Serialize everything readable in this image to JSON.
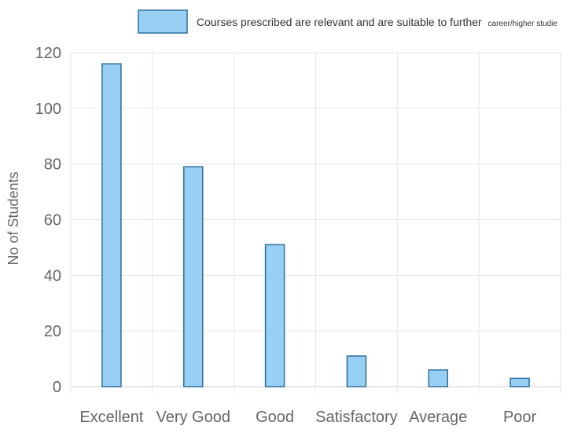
{
  "chart_data": {
    "type": "bar",
    "title": "",
    "xlabel": "",
    "ylabel": "No of Students",
    "categories": [
      "Excellent",
      "Very Good",
      "Good",
      "Satisfactory",
      "Average",
      "Poor"
    ],
    "series": [
      {
        "name": "Courses prescribed are relevant and are suitable to further career/higher studie",
        "values": [
          116,
          79,
          51,
          11,
          6,
          3
        ],
        "color": "#97d0f3",
        "border_color": "#2e6f9e"
      }
    ],
    "ylim": [
      0,
      120
    ],
    "yticks": [
      0,
      20,
      40,
      60,
      80,
      100,
      120
    ],
    "grid": true,
    "legend_position": "top",
    "legend_text_main": "Courses prescribed are relevant and are suitable to further",
    "legend_text_small": "career/higher studie"
  }
}
